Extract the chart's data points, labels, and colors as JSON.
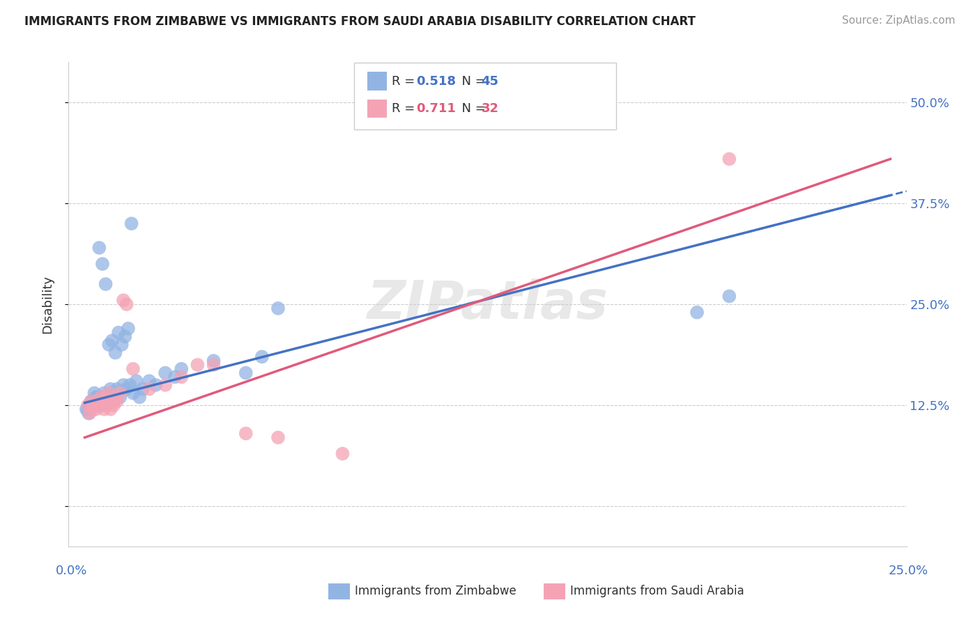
{
  "title": "IMMIGRANTS FROM ZIMBABWE VS IMMIGRANTS FROM SAUDI ARABIA DISABILITY CORRELATION CHART",
  "source": "Source: ZipAtlas.com",
  "ylabel": "Disability",
  "xlim": [
    0.0,
    25.0
  ],
  "ylim": [
    -5.0,
    55.0
  ],
  "yticks": [
    0.0,
    12.5,
    25.0,
    37.5,
    50.0
  ],
  "ytick_labels": [
    "",
    "12.5%",
    "25.0%",
    "37.5%",
    "50.0%"
  ],
  "xtick_left": "0.0%",
  "xtick_right": "25.0%",
  "zimbabwe_color": "#92b4e3",
  "zimbabwe_line_color": "#4472c4",
  "saudi_color": "#f4a3b5",
  "saudi_line_color": "#e05a7a",
  "zimbabwe_R": "0.518",
  "zimbabwe_N": "45",
  "saudi_R": "0.711",
  "saudi_N": "32",
  "watermark": "ZIPatlas",
  "zimbabwe_scatter_x": [
    0.3,
    0.5,
    0.6,
    0.7,
    0.8,
    0.9,
    1.0,
    1.1,
    1.2,
    1.3,
    1.4,
    1.5,
    1.6,
    1.7,
    1.8,
    2.0,
    2.2,
    2.5,
    2.8,
    0.15,
    0.2,
    0.25,
    0.35,
    0.4,
    3.0,
    4.0,
    5.0,
    5.5,
    0.45,
    0.55,
    0.65,
    0.75,
    0.85,
    0.95,
    1.05,
    1.15,
    1.25,
    1.35,
    1.45,
    0.05,
    0.1,
    0.12,
    6.0,
    19.0,
    20.0
  ],
  "zimbabwe_scatter_y": [
    14.0,
    13.5,
    14.0,
    13.0,
    14.5,
    13.0,
    14.5,
    13.5,
    15.0,
    14.5,
    15.0,
    14.0,
    15.5,
    13.5,
    14.5,
    15.5,
    15.0,
    16.5,
    16.0,
    12.5,
    13.0,
    12.5,
    13.5,
    13.5,
    17.0,
    18.0,
    16.5,
    18.5,
    32.0,
    30.0,
    27.5,
    20.0,
    20.5,
    19.0,
    21.5,
    20.0,
    21.0,
    22.0,
    35.0,
    12.0,
    12.0,
    11.5,
    24.5,
    24.0,
    26.0
  ],
  "saudi_scatter_x": [
    0.1,
    0.15,
    0.2,
    0.25,
    0.3,
    0.35,
    0.4,
    0.45,
    0.5,
    0.55,
    0.6,
    0.65,
    0.7,
    0.75,
    0.8,
    0.85,
    0.9,
    0.95,
    1.0,
    1.1,
    1.2,
    1.3,
    1.5,
    2.0,
    2.5,
    3.0,
    3.5,
    4.0,
    5.0,
    6.0,
    8.0,
    20.0
  ],
  "saudi_scatter_y": [
    12.5,
    11.5,
    13.0,
    12.0,
    12.5,
    12.0,
    13.0,
    12.5,
    13.5,
    12.5,
    12.0,
    13.5,
    12.5,
    14.0,
    12.0,
    13.0,
    12.5,
    13.5,
    13.0,
    14.0,
    25.5,
    25.0,
    17.0,
    14.5,
    15.0,
    16.0,
    17.5,
    17.5,
    9.0,
    8.5,
    6.5,
    43.0
  ],
  "zimbabwe_trend_x0": 0.0,
  "zimbabwe_trend_y0": 12.8,
  "zimbabwe_trend_x1": 25.0,
  "zimbabwe_trend_y1": 38.5,
  "zimbabwe_dash_x0": 19.0,
  "zimbabwe_dash_x1": 25.5,
  "saudi_trend_x0": 0.0,
  "saudi_trend_y0": 8.5,
  "saudi_trend_x1": 25.0,
  "saudi_trend_y1": 43.0
}
